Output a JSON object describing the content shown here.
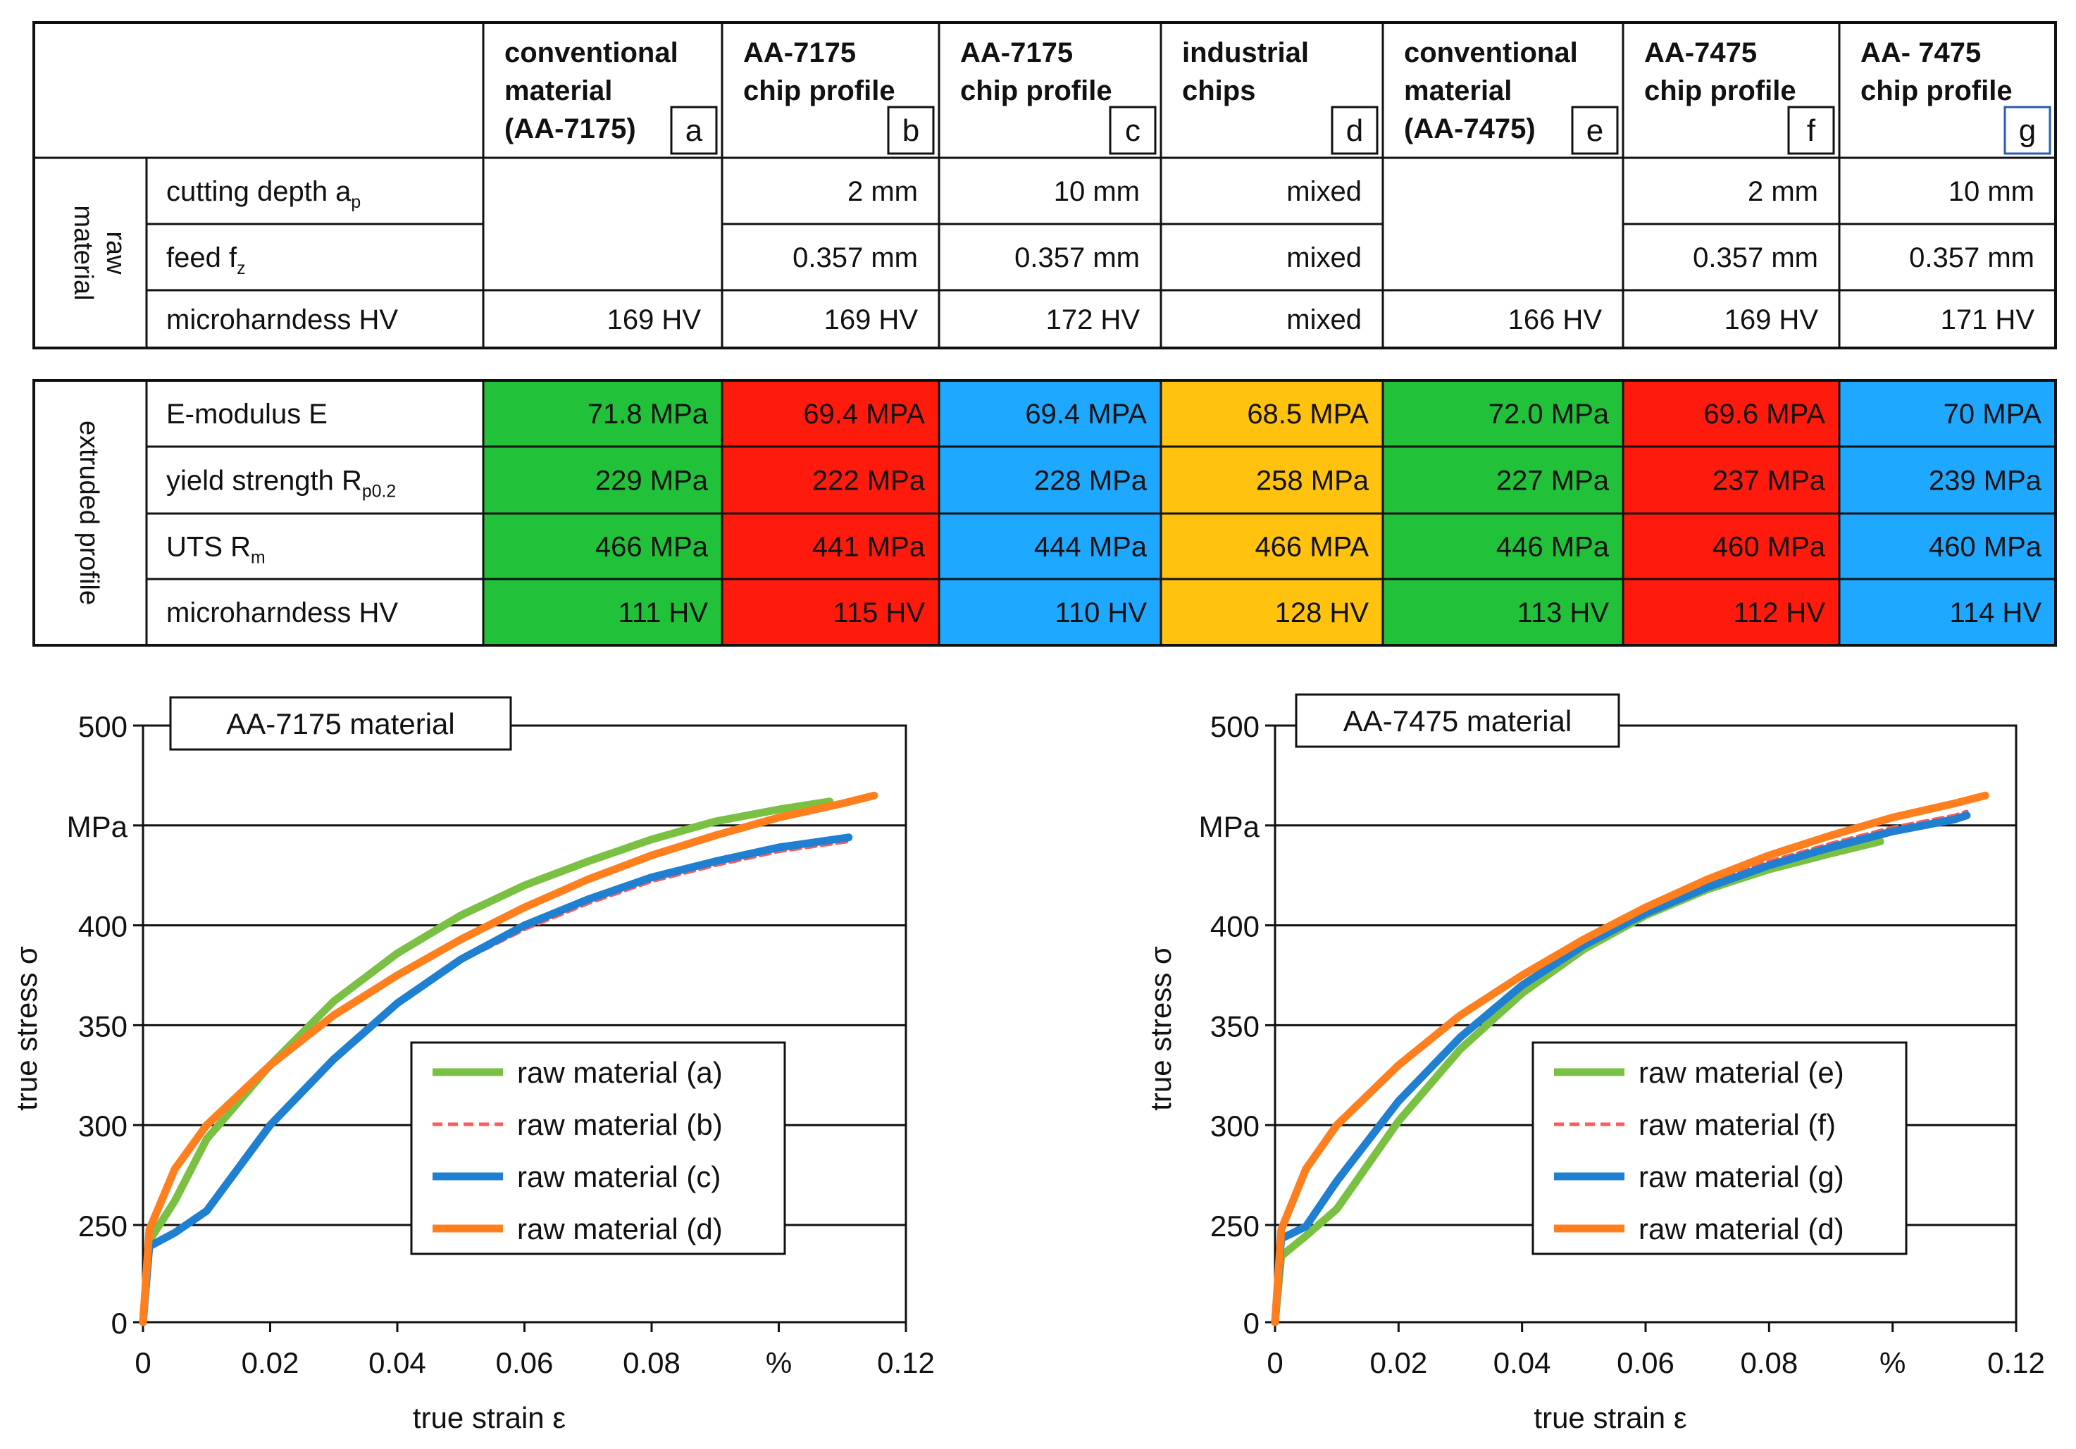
{
  "table_raw": {
    "group_label_lines": [
      "raw",
      "material"
    ],
    "columns": [
      {
        "lines": [
          "conventional",
          "material",
          "(AA-7175)"
        ],
        "letter": "a"
      },
      {
        "lines": [
          "AA-7175",
          "chip profile"
        ],
        "letter": "b"
      },
      {
        "lines": [
          "AA-7175",
          "chip profile"
        ],
        "letter": "c"
      },
      {
        "lines": [
          "industrial",
          "chips"
        ],
        "letter": "d"
      },
      {
        "lines": [
          "conventional",
          "material",
          "(AA-7475)"
        ],
        "letter": "e"
      },
      {
        "lines": [
          "AA-7475",
          "chip profile"
        ],
        "letter": "f"
      },
      {
        "lines": [
          "AA- 7475",
          "chip profile"
        ],
        "letter": "g"
      }
    ],
    "rows": [
      {
        "label": "cutting depth a",
        "sub": "p",
        "values": [
          "",
          "2 mm",
          "10 mm",
          "mixed",
          "",
          "2 mm",
          "10 mm"
        ]
      },
      {
        "label": "feed f",
        "sub": "z",
        "values": [
          "",
          "0.357 mm",
          "0.357 mm",
          "mixed",
          "",
          "0.357 mm",
          "0.357 mm"
        ]
      },
      {
        "label": "microharndess HV",
        "sub": "",
        "values": [
          "169 HV",
          "169 HV",
          "172 HV",
          "mixed",
          "166 HV",
          "169 HV",
          "171 HV"
        ]
      }
    ]
  },
  "table_extruded": {
    "group_label_lines": [
      "extruded profile"
    ],
    "column_colors": [
      "#22c13a",
      "#ff1a0e",
      "#1fa8ff",
      "#ffc20e",
      "#22c13a",
      "#ff1a0e",
      "#1fa8ff"
    ],
    "rows": [
      {
        "label": "E-modulus E",
        "sub": "",
        "values": [
          "71.8 MPa",
          "69.4 MPA",
          "69.4 MPA",
          "68.5 MPA",
          "72.0 MPa",
          "69.6 MPA",
          "70 MPA"
        ]
      },
      {
        "label": "yield strength R",
        "sub": "p0.2",
        "values": [
          "229 MPa",
          "222 MPa",
          "228 MPa",
          "258 MPa",
          "227 MPa",
          "237 MPa",
          "239 MPa"
        ]
      },
      {
        "label": "UTS R",
        "sub": "m",
        "values": [
          "466 MPa",
          "441 MPa",
          "444 MPa",
          "466 MPA",
          "446 MPa",
          "460 MPa",
          "460 MPa"
        ]
      },
      {
        "label": "microharndess HV",
        "sub": "",
        "values": [
          "111 HV",
          "115 HV",
          "110 HV",
          "128 HV",
          "113 HV",
          "112 HV",
          "114 HV"
        ]
      }
    ]
  },
  "chart_data": [
    {
      "type": "line",
      "title": "AA-7175 material",
      "xlabel": "true strain ε",
      "ylabel": "true stress σ",
      "x_ticks": [
        "0",
        "0.02",
        "0.04",
        "0.06",
        "0.08",
        "%",
        "0.12"
      ],
      "y_ticks": [
        "0",
        "250",
        "300",
        "350",
        "400",
        "MPa",
        "500"
      ],
      "xlim": [
        0,
        0.12
      ],
      "ylim": [
        0,
        500
      ],
      "legend_position": "lower-right",
      "series": [
        {
          "name": "raw material (a)",
          "color": "#7ac143",
          "dash": "solid",
          "points": [
            [
              0,
              0
            ],
            [
              0.001,
              210
            ],
            [
              0.005,
              262
            ],
            [
              0.01,
              293
            ],
            [
              0.02,
              330
            ],
            [
              0.03,
              362
            ],
            [
              0.04,
              386
            ],
            [
              0.05,
              405
            ],
            [
              0.06,
              420
            ],
            [
              0.07,
              432
            ],
            [
              0.08,
              443
            ],
            [
              0.09,
              452
            ],
            [
              0.1,
              458
            ],
            [
              0.108,
              462
            ]
          ]
        },
        {
          "name": "raw material (b)",
          "color": "#ff5a5a",
          "dash": "dashed",
          "points": [
            [
              0,
              0
            ],
            [
              0.001,
              198
            ],
            [
              0.005,
              232
            ],
            [
              0.01,
              258
            ],
            [
              0.02,
              300
            ],
            [
              0.03,
              332
            ],
            [
              0.04,
              360
            ],
            [
              0.05,
              382
            ],
            [
              0.06,
              398
            ],
            [
              0.07,
              411
            ],
            [
              0.08,
              422
            ],
            [
              0.09,
              430
            ],
            [
              0.1,
              437
            ],
            [
              0.111,
              442
            ]
          ]
        },
        {
          "name": "raw material (c)",
          "color": "#1f7fd0",
          "dash": "solid",
          "points": [
            [
              0,
              0
            ],
            [
              0.001,
              195
            ],
            [
              0.005,
              230
            ],
            [
              0.01,
              257
            ],
            [
              0.02,
              300
            ],
            [
              0.03,
              333
            ],
            [
              0.04,
              361
            ],
            [
              0.05,
              383
            ],
            [
              0.06,
              400
            ],
            [
              0.07,
              413
            ],
            [
              0.08,
              424
            ],
            [
              0.09,
              432
            ],
            [
              0.1,
              439
            ],
            [
              0.111,
              444
            ]
          ]
        },
        {
          "name": "raw material (d)",
          "color": "#ff7f1f",
          "dash": "solid",
          "points": [
            [
              0,
              0
            ],
            [
              0.001,
              238
            ],
            [
              0.005,
              278
            ],
            [
              0.01,
              300
            ],
            [
              0.02,
              330
            ],
            [
              0.03,
              355
            ],
            [
              0.04,
              375
            ],
            [
              0.05,
              393
            ],
            [
              0.06,
              409
            ],
            [
              0.07,
              423
            ],
            [
              0.08,
              435
            ],
            [
              0.09,
              445
            ],
            [
              0.1,
              454
            ],
            [
              0.11,
              461
            ],
            [
              0.115,
              465
            ]
          ]
        }
      ]
    },
    {
      "type": "line",
      "title": "AA-7475 material",
      "xlabel": "true strain ε",
      "ylabel": "true stress σ",
      "x_ticks": [
        "0",
        "0.02",
        "0.04",
        "0.06",
        "0.08",
        "%",
        "0.12"
      ],
      "y_ticks": [
        "0",
        "250",
        "300",
        "350",
        "400",
        "MPa",
        "500"
      ],
      "xlim": [
        0,
        0.12
      ],
      "ylim": [
        0,
        500
      ],
      "legend_position": "lower-right",
      "series": [
        {
          "name": "raw material (e)",
          "color": "#7ac143",
          "dash": "solid",
          "points": [
            [
              0,
              0
            ],
            [
              0.001,
              170
            ],
            [
              0.005,
              222
            ],
            [
              0.01,
              258
            ],
            [
              0.02,
              302
            ],
            [
              0.03,
              338
            ],
            [
              0.04,
              366
            ],
            [
              0.05,
              388
            ],
            [
              0.06,
              405
            ],
            [
              0.07,
              418
            ],
            [
              0.08,
              428
            ],
            [
              0.09,
              436
            ],
            [
              0.098,
              442
            ]
          ]
        },
        {
          "name": "raw material (f)",
          "color": "#ff5a5a",
          "dash": "dashed",
          "points": [
            [
              0,
              0
            ],
            [
              0.001,
              210
            ],
            [
              0.005,
              243
            ],
            [
              0.01,
              270
            ],
            [
              0.02,
              312
            ],
            [
              0.03,
              344
            ],
            [
              0.04,
              370
            ],
            [
              0.05,
              391
            ],
            [
              0.06,
              408
            ],
            [
              0.07,
              421
            ],
            [
              0.08,
              432
            ],
            [
              0.09,
              441
            ],
            [
              0.1,
              449
            ],
            [
              0.11,
              455
            ],
            [
              0.112,
              457
            ]
          ]
        },
        {
          "name": "raw material (g)",
          "color": "#1f7fd0",
          "dash": "solid",
          "points": [
            [
              0,
              0
            ],
            [
              0.001,
              215
            ],
            [
              0.005,
              246
            ],
            [
              0.01,
              272
            ],
            [
              0.02,
              312
            ],
            [
              0.03,
              344
            ],
            [
              0.04,
              370
            ],
            [
              0.05,
              390
            ],
            [
              0.06,
              406
            ],
            [
              0.07,
              419
            ],
            [
              0.08,
              430
            ],
            [
              0.09,
              439
            ],
            [
              0.1,
              447
            ],
            [
              0.11,
              453
            ],
            [
              0.112,
              455
            ]
          ]
        },
        {
          "name": "raw material (d)",
          "color": "#ff7f1f",
          "dash": "solid",
          "points": [
            [
              0,
              0
            ],
            [
              0.001,
              238
            ],
            [
              0.005,
              278
            ],
            [
              0.01,
              300
            ],
            [
              0.02,
              330
            ],
            [
              0.03,
              355
            ],
            [
              0.04,
              375
            ],
            [
              0.05,
              393
            ],
            [
              0.06,
              409
            ],
            [
              0.07,
              423
            ],
            [
              0.08,
              435
            ],
            [
              0.09,
              445
            ],
            [
              0.1,
              454
            ],
            [
              0.11,
              461
            ],
            [
              0.115,
              465
            ]
          ]
        }
      ]
    }
  ]
}
